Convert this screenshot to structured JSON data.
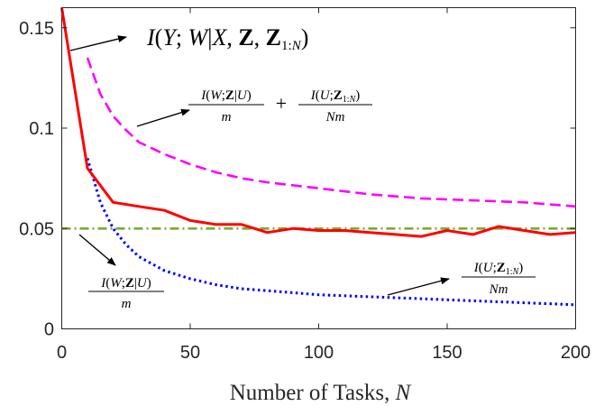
{
  "chart_data": {
    "type": "line",
    "xlabel": "Number of Tasks, N",
    "ylabel": "",
    "xlim": [
      0,
      200
    ],
    "ylim": [
      0,
      0.16
    ],
    "xticks": [
      "0",
      "50",
      "100",
      "150",
      "200"
    ],
    "yticks": [
      "0",
      "0.05",
      "0.1",
      "0.15"
    ],
    "grid": false,
    "series": [
      {
        "name": "I(Y;W|X,Z,Z_{1:N})",
        "style": "solid",
        "color": "#ff0000",
        "x": [
          0,
          10,
          20,
          30,
          40,
          50,
          60,
          70,
          80,
          90,
          100,
          110,
          120,
          130,
          140,
          150,
          160,
          170,
          180,
          190,
          200
        ],
        "y": [
          0.16,
          0.08,
          0.063,
          0.061,
          0.059,
          0.054,
          0.052,
          0.052,
          0.048,
          0.05,
          0.049,
          0.049,
          0.048,
          0.047,
          0.046,
          0.049,
          0.047,
          0.051,
          0.049,
          0.047,
          0.048
        ]
      },
      {
        "name": "I(W;Z|U)/m + I(U;Z_{1:N})/(Nm)",
        "style": "dashed",
        "color": "#ff00ff",
        "x": [
          10,
          15,
          20,
          25,
          30,
          40,
          50,
          60,
          70,
          80,
          100,
          120,
          140,
          160,
          180,
          200
        ],
        "y": [
          0.135,
          0.117,
          0.106,
          0.099,
          0.093,
          0.087,
          0.082,
          0.078,
          0.075,
          0.073,
          0.07,
          0.067,
          0.065,
          0.064,
          0.063,
          0.061
        ]
      },
      {
        "name": "I(W;Z|U)/m",
        "style": "dashdot",
        "color": "#77ac30",
        "x": [
          0,
          200
        ],
        "y": [
          0.05,
          0.05
        ]
      },
      {
        "name": "I(U;Z_{1:N})/(Nm)",
        "style": "dotted",
        "color": "#0000ff",
        "x": [
          10,
          15,
          20,
          25,
          30,
          40,
          50,
          60,
          70,
          80,
          100,
          120,
          140,
          160,
          180,
          200
        ],
        "y": [
          0.085,
          0.063,
          0.05,
          0.042,
          0.036,
          0.029,
          0.025,
          0.022,
          0.02,
          0.019,
          0.017,
          0.016,
          0.015,
          0.014,
          0.013,
          0.012
        ]
      }
    ]
  }
}
